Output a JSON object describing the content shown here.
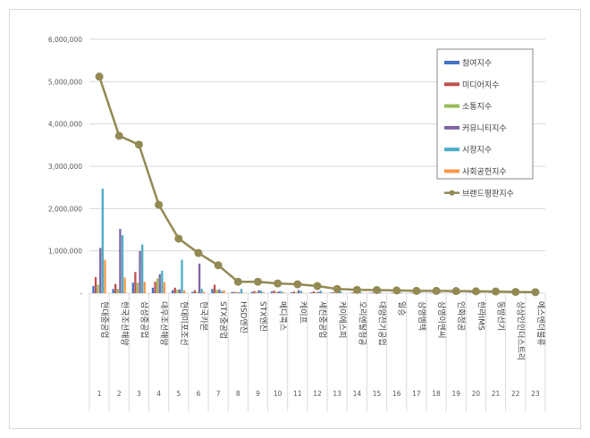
{
  "chart_data": {
    "type": "bar",
    "title": "",
    "categories": [
      "현대중공업",
      "한국조선해양",
      "삼성중공업",
      "대우조선해양",
      "현대미포조선",
      "한국카본",
      "STX중공업",
      "HSD엔진",
      "STX엔진",
      "메디콕스",
      "케이프",
      "세진중공업",
      "케이에스피",
      "오리엔탈정공",
      "대양전기공업",
      "일승",
      "삼영엠텍",
      "삼영이엔씨",
      "인화정공",
      "한라IMS",
      "동방선기",
      "상상인인더스트리",
      "에스엔더블류"
    ],
    "ranks": [
      "1",
      "2",
      "3",
      "4",
      "5",
      "6",
      "7",
      "8",
      "9",
      "10",
      "11",
      "12",
      "13",
      "14",
      "15",
      "16",
      "17",
      "18",
      "19",
      "20",
      "21",
      "22",
      "23"
    ],
    "ylim": [
      0,
      6000000
    ],
    "yticks": [
      0,
      1000000,
      2000000,
      3000000,
      4000000,
      5000000,
      6000000
    ],
    "ytick_labels": [
      "-",
      "1,000,000",
      "2,000,000",
      "3,000,000",
      "4,000,000",
      "5,000,000",
      "6,000,000"
    ],
    "grid": true,
    "legend_position": "top-right",
    "series": [
      {
        "name": "참여지수",
        "type": "bar",
        "color": "#4472C4",
        "values": [
          170000,
          100000,
          250000,
          130000,
          70000,
          30000,
          100000,
          30000,
          30000,
          40000,
          20000,
          20000,
          15000,
          10000,
          10000,
          8000,
          8000,
          8000,
          6000,
          6000,
          5000,
          5000,
          4000
        ]
      },
      {
        "name": "미디어지수",
        "type": "bar",
        "color": "#C0504D",
        "values": [
          380000,
          220000,
          500000,
          270000,
          130000,
          70000,
          200000,
          30000,
          50000,
          60000,
          40000,
          40000,
          20000,
          20000,
          15000,
          10000,
          10000,
          10000,
          8000,
          8000,
          6000,
          6000,
          5000
        ]
      },
      {
        "name": "소통지수",
        "type": "bar",
        "color": "#9BBB59",
        "values": [
          200000,
          100000,
          250000,
          350000,
          80000,
          30000,
          80000,
          30000,
          30000,
          30000,
          20000,
          20000,
          10000,
          10000,
          8000,
          6000,
          6000,
          6000,
          5000,
          5000,
          4000,
          4000,
          3000
        ]
      },
      {
        "name": "커뮤니티지수",
        "type": "bar",
        "color": "#8064A2",
        "values": [
          1070000,
          1520000,
          1000000,
          450000,
          90000,
          700000,
          90000,
          20000,
          70000,
          40000,
          70000,
          30000,
          20000,
          15000,
          15000,
          10000,
          10000,
          10000,
          8000,
          8000,
          6000,
          6000,
          5000
        ]
      },
      {
        "name": "시장지수",
        "type": "bar",
        "color": "#4BACC6",
        "values": [
          2470000,
          1370000,
          1150000,
          530000,
          790000,
          100000,
          50000,
          100000,
          60000,
          50000,
          60000,
          60000,
          40000,
          30000,
          30000,
          25000,
          25000,
          25000,
          20000,
          20000,
          20000,
          15000,
          15000
        ]
      },
      {
        "name": "사회공헌지수",
        "type": "bar",
        "color": "#F79646",
        "values": [
          790000,
          370000,
          270000,
          260000,
          70000,
          30000,
          70000,
          10000,
          20000,
          20000,
          10000,
          10000,
          5000,
          5000,
          5000,
          5000,
          5000,
          5000,
          3000,
          3000,
          3000,
          3000,
          3000
        ]
      },
      {
        "name": "브랜드평판지수",
        "type": "line",
        "color": "#938953",
        "values": [
          5120000,
          3720000,
          3510000,
          2090000,
          1290000,
          950000,
          660000,
          270000,
          270000,
          230000,
          210000,
          170000,
          100000,
          80000,
          75000,
          65000,
          55000,
          55000,
          50000,
          45000,
          40000,
          30000,
          25000
        ]
      }
    ]
  }
}
